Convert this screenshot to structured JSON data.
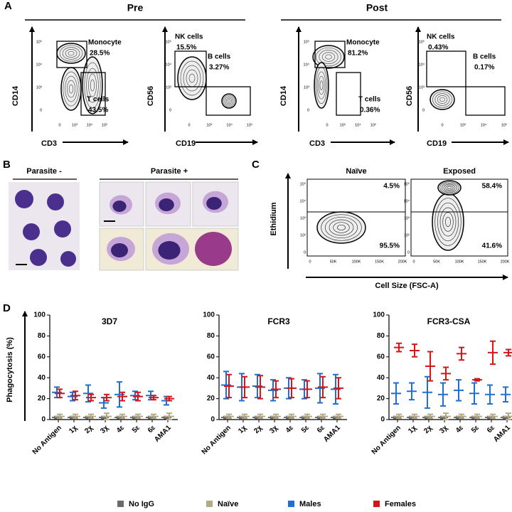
{
  "panel_a": {
    "label": "A",
    "groups": [
      {
        "title": "Pre",
        "plots": [
          {
            "y_label": "CD14",
            "x_label": "CD3",
            "x_ticks": [
              "0",
              "10³",
              "10⁴",
              "10⁵"
            ],
            "y_ticks": [
              "0",
              "10³",
              "10⁴",
              "10⁵"
            ],
            "gates": [
              {
                "name": "Monocyte",
                "percent": "28.5%"
              },
              {
                "name": "T cells",
                "percent": "43.5%"
              }
            ]
          },
          {
            "y_label": "CD56",
            "x_label": "CD19",
            "x_ticks": [
              "0",
              "10³",
              "10⁴",
              "10⁵"
            ],
            "y_ticks": [
              "0",
              "10³",
              "10⁴",
              "10⁵"
            ],
            "gates": [
              {
                "name": "NK cells",
                "percent": "15.5%"
              },
              {
                "name": "B cells",
                "percent": "3.27%"
              }
            ]
          }
        ]
      },
      {
        "title": "Post",
        "plots": [
          {
            "y_label": "CD14",
            "x_label": "CD3",
            "x_ticks": [
              "0",
              "10³",
              "10⁴",
              "10⁵"
            ],
            "y_ticks": [
              "0",
              "10³",
              "10⁴",
              "10⁵"
            ],
            "gates": [
              {
                "name": "Monocyte",
                "percent": "81.2%"
              },
              {
                "name": "T cells",
                "percent": "0.36%"
              }
            ]
          },
          {
            "y_label": "CD56",
            "x_label": "CD19",
            "x_ticks": [
              "0",
              "10³",
              "10⁴",
              "10⁵"
            ],
            "y_ticks": [
              "0",
              "10³",
              "10⁴",
              "10⁵"
            ],
            "gates": [
              {
                "name": "NK cells",
                "percent": "0.43%"
              },
              {
                "name": "B cells",
                "percent": "0.17%"
              }
            ]
          }
        ]
      }
    ]
  },
  "panel_b": {
    "label": "B",
    "groups": [
      "Parasite -",
      "Parasite +"
    ]
  },
  "panel_c": {
    "label": "C",
    "y_label": "Ethidium",
    "x_label": "Cell Size (FSC-A)",
    "x_ticks": [
      "0",
      "50K",
      "100K",
      "150K",
      "200K"
    ],
    "y_ticks": [
      "0",
      "10²",
      "10³",
      "10⁴",
      "10⁵"
    ],
    "plots": [
      {
        "title": "Naïve",
        "upper": "4.5%",
        "lower": "95.5%"
      },
      {
        "title": "Exposed",
        "upper": "58.4%",
        "lower": "41.6%"
      }
    ]
  },
  "panel_d": {
    "label": "D",
    "y_label": "Phagocytosis (%)"
  },
  "chart_data": [
    {
      "type": "errorbar",
      "title": "3D7",
      "categories": [
        "No Antigen",
        "1χ",
        "2χ",
        "3χ",
        "4ε",
        "5ε",
        "6ε",
        "AMA1"
      ],
      "ylim": [
        0,
        100
      ],
      "yticks": [
        0,
        20,
        40,
        60,
        80,
        100
      ],
      "series": [
        {
          "name": "No IgG",
          "color": "#6b6b6b",
          "values": [
            2,
            2,
            2,
            2,
            2,
            2,
            2,
            2
          ],
          "errors": [
            1,
            1,
            1,
            1,
            1,
            1,
            1,
            1
          ]
        },
        {
          "name": "Naïve",
          "color": "#b5aa86",
          "values": [
            3,
            3,
            3,
            3,
            3,
            3,
            3,
            3
          ],
          "errors": [
            2,
            2,
            2,
            3,
            2,
            2,
            2,
            3
          ]
        },
        {
          "name": "Males",
          "color": "#1e6fd4",
          "values": [
            26,
            22,
            25,
            16,
            24,
            23,
            23,
            18
          ],
          "errors": [
            5,
            4,
            8,
            5,
            12,
            4,
            4,
            4
          ]
        },
        {
          "name": "Females",
          "color": "#d41519",
          "values": [
            25,
            23,
            21,
            21,
            22,
            22,
            21,
            20
          ],
          "errors": [
            4,
            4,
            3,
            3,
            4,
            4,
            2,
            2
          ]
        }
      ]
    },
    {
      "type": "errorbar",
      "title": "FCR3",
      "categories": [
        "No Antigen",
        "1χ",
        "2χ",
        "3χ",
        "4ε",
        "5ε",
        "6ε",
        "AMA1"
      ],
      "ylim": [
        0,
        100
      ],
      "yticks": [
        0,
        20,
        40,
        60,
        80,
        100
      ],
      "series": [
        {
          "name": "No IgG",
          "color": "#6b6b6b",
          "values": [
            2,
            2,
            2,
            2,
            2,
            2,
            2,
            2
          ],
          "errors": [
            1,
            1,
            1,
            1,
            1,
            1,
            1,
            1
          ]
        },
        {
          "name": "Naïve",
          "color": "#b5aa86",
          "values": [
            3,
            3,
            3,
            3,
            3,
            3,
            3,
            3
          ],
          "errors": [
            2,
            2,
            2,
            2,
            2,
            2,
            2,
            2
          ]
        },
        {
          "name": "Males",
          "color": "#1e6fd4",
          "values": [
            33,
            31,
            32,
            28,
            30,
            29,
            30,
            29
          ],
          "errors": [
            13,
            13,
            11,
            10,
            10,
            9,
            14,
            14
          ]
        },
        {
          "name": "Females",
          "color": "#d41519",
          "values": [
            32,
            31,
            31,
            29,
            30,
            29,
            31,
            30
          ],
          "errors": [
            11,
            10,
            11,
            8,
            9,
            8,
            10,
            10
          ]
        }
      ]
    },
    {
      "type": "errorbar",
      "title": "FCR3-CSA",
      "categories": [
        "No Antigen",
        "1χ",
        "2χ",
        "3χ",
        "4ε",
        "5ε",
        "6ε",
        "AMA1"
      ],
      "ylim": [
        0,
        100
      ],
      "yticks": [
        0,
        20,
        40,
        60,
        80,
        100
      ],
      "series": [
        {
          "name": "No IgG",
          "color": "#6b6b6b",
          "values": [
            2,
            2,
            2,
            2,
            2,
            2,
            2,
            2
          ],
          "errors": [
            1,
            1,
            1,
            1,
            1,
            1,
            1,
            1
          ]
        },
        {
          "name": "Naïve",
          "color": "#b5aa86",
          "values": [
            3,
            3,
            3,
            3,
            3,
            3,
            3,
            3
          ],
          "errors": [
            2,
            2,
            2,
            3,
            2,
            2,
            2,
            3
          ]
        },
        {
          "name": "Males",
          "color": "#1e6fd4",
          "values": [
            25,
            27,
            26,
            24,
            28,
            25,
            24,
            24
          ],
          "errors": [
            10,
            8,
            15,
            11,
            10,
            10,
            9,
            7
          ]
        },
        {
          "name": "Females",
          "color": "#d41519",
          "values": [
            69,
            66,
            51,
            44,
            63,
            38,
            64,
            64
          ],
          "errors": [
            4,
            6,
            14,
            6,
            6,
            1,
            11,
            3
          ]
        }
      ]
    }
  ]
}
